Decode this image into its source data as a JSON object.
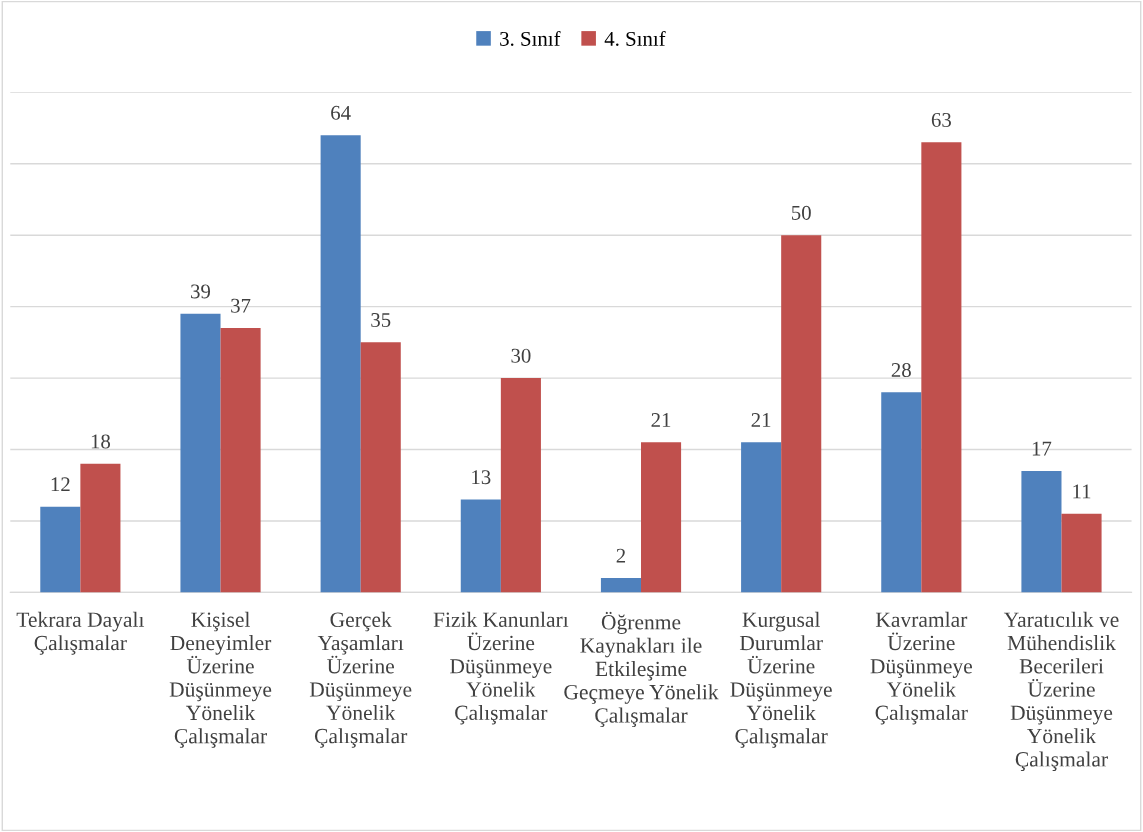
{
  "chart_data": {
    "type": "bar",
    "categories": [
      "Tekrara Dayalı Çalışmalar",
      "Kişisel Deneyimler Üzerine Düşünmeye Yönelik Çalışmalar",
      "Gerçek Yaşamları Üzerine Düşünmeye Yönelik Çalışmalar",
      "Fizik Kanunları Üzerine Düşünmeye Yönelik Çalışmalar",
      "Öğrenme Kaynakları ile Etkileşime Geçmeye Yönelik Çalışmalar",
      "Kurgusal Durumlar Üzerine Düşünmeye Yönelik Çalışmalar",
      "Kavramlar Üzerine Düşünmeye Yönelik Çalışmalar",
      "Yaratıcılık ve Mühendislik Becerileri Üzerine Düşünmeye Yönelik Çalışmalar"
    ],
    "series": [
      {
        "name": "3. Sınıf",
        "color": "#4f81bd",
        "values": [
          12,
          39,
          64,
          13,
          2,
          21,
          28,
          17
        ]
      },
      {
        "name": "4. Sınıf",
        "color": "#c0504d",
        "values": [
          18,
          37,
          35,
          30,
          21,
          50,
          63,
          11
        ]
      }
    ],
    "ylim": [
      0,
      70
    ],
    "yticks": [
      {
        "value": 0,
        "label": null
      },
      {
        "value": 10,
        "label": null
      },
      {
        "value": 20,
        "label": null
      },
      {
        "value": 30,
        "label": null
      },
      {
        "value": 40,
        "label": null
      },
      {
        "value": 50,
        "label": null
      },
      {
        "value": 60,
        "label": null
      },
      {
        "value": 70,
        "label": null
      }
    ],
    "tick_labels": "x",
    "grid": "y",
    "legend": "top",
    "data_labels": true
  }
}
